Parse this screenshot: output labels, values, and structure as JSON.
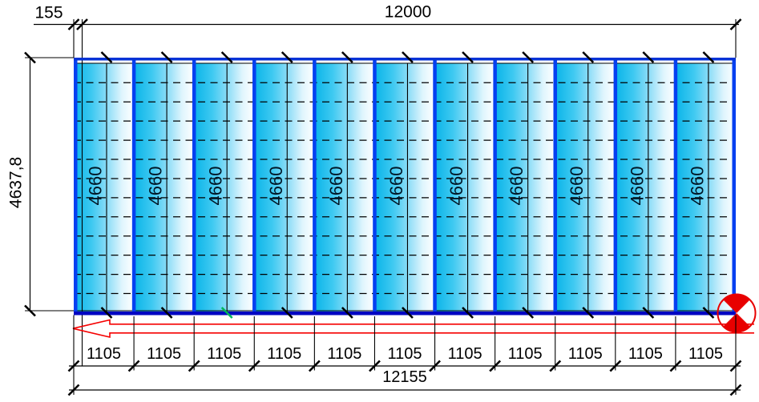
{
  "drawing": {
    "kind": "facade-module-layout",
    "dimensions": {
      "top_offset_label": "155",
      "top_total_label": "12000",
      "left_height_label": "4637,8",
      "panel_height_labels": [
        "4660",
        "4660",
        "4660",
        "4660",
        "4660",
        "4660",
        "4660",
        "4660",
        "4660",
        "4660",
        "4660"
      ],
      "module_width_labels": [
        "1105",
        "1105",
        "1105",
        "1105",
        "1105",
        "1105",
        "1105",
        "1105",
        "1105",
        "1105",
        "1105"
      ],
      "bottom_total_label": "12155"
    },
    "symbols": {
      "direction_arrow": "left-arrow-outline",
      "corner_marker": "quadrant-circle-marker",
      "selected_tick": {
        "index": 2,
        "color": "#00b65a"
      }
    },
    "colors": {
      "glass_start": "#0ab4e8",
      "glass_mid1": "#3ec9f1",
      "glass_mid2": "#8adcf7",
      "glass_mid3": "#dff5fd",
      "glass_end": "#ffffff",
      "mullion": "#0540f0",
      "frame_top": "#0433d6",
      "frame_bottom": "#0206c2",
      "line": "#000000",
      "panel_text": "#001626",
      "arrow": "#f50000",
      "marker": "#e80000"
    }
  }
}
